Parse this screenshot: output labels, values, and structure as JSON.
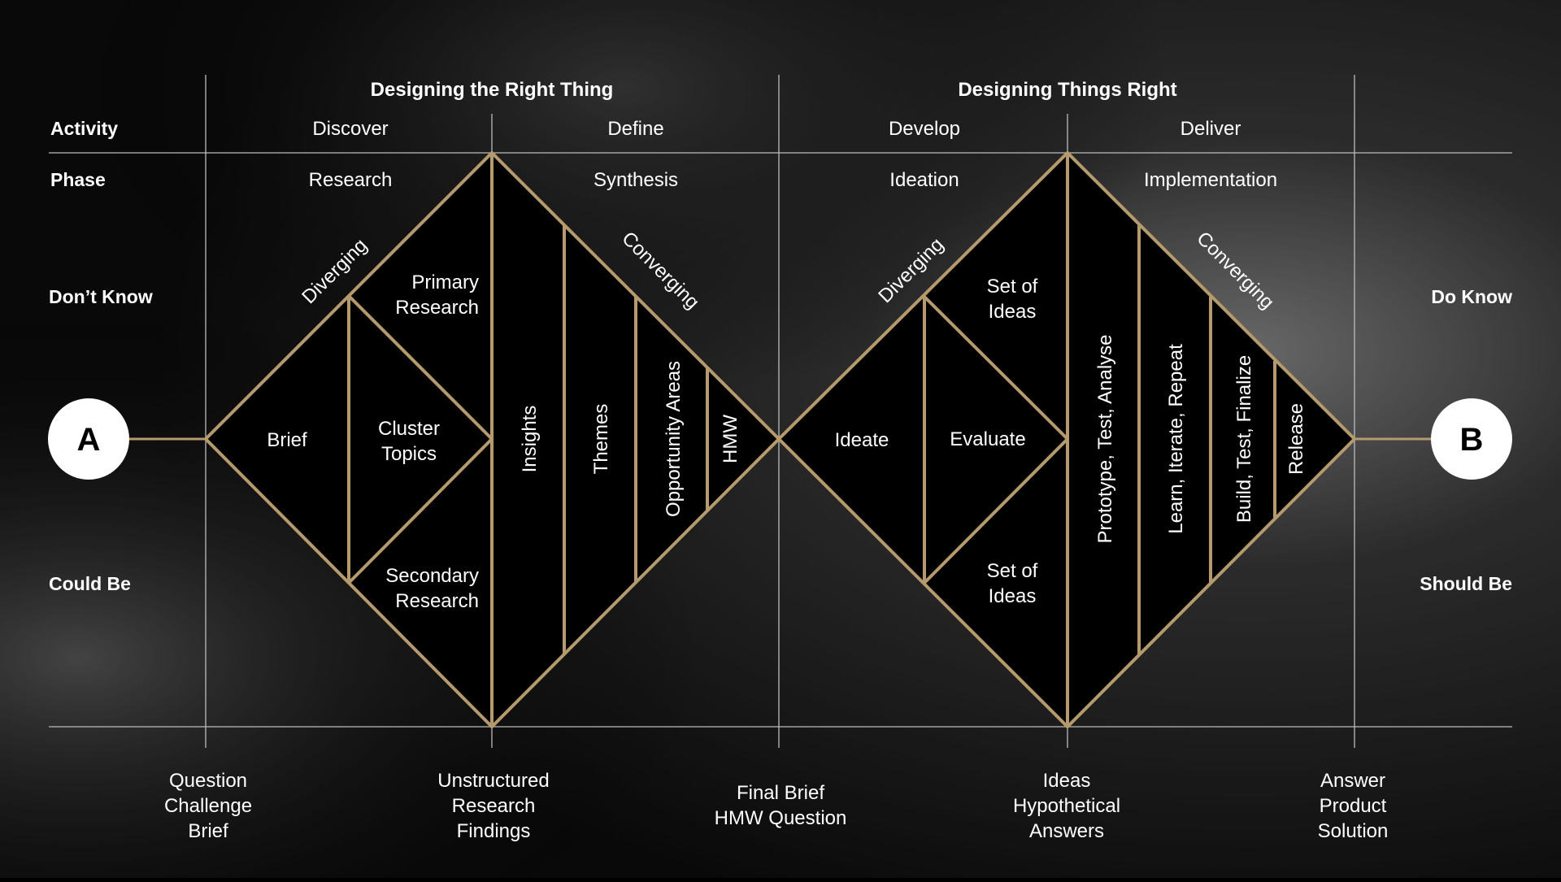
{
  "colors": {
    "gold": "#b49a6c",
    "grid": "#bdbdbd",
    "diamond_fill": "#000000",
    "text": "#ffffff",
    "background": "#0d0d0d"
  },
  "headers": {
    "left": "Designing the Right Thing",
    "right": "Designing Things Right"
  },
  "rows": {
    "activity": "Activity",
    "phase": "Phase"
  },
  "activities": [
    "Discover",
    "Define",
    "Develop",
    "Deliver"
  ],
  "phases": [
    "Research",
    "Synthesis",
    "Ideation",
    "Implementation"
  ],
  "sides": {
    "dont_know": "Don’t Know",
    "could_be": "Could Be",
    "do_know": "Do Know",
    "should_be": "Should Be"
  },
  "endpoints": {
    "start": "A",
    "end": "B"
  },
  "diamond1": {
    "diverging": "Diverging",
    "converging": "Converging",
    "brief": "Brief",
    "cluster": [
      "Cluster",
      "Topics"
    ],
    "primary": [
      "Primary",
      "Research"
    ],
    "secondary": [
      "Secondary",
      "Research"
    ],
    "insights": "Insights",
    "themes": "Themes",
    "opportunity": "Opportunity Areas",
    "hmw": "HMW"
  },
  "diamond2": {
    "diverging": "Diverging",
    "converging": "Converging",
    "ideate": "Ideate",
    "evaluate": "Evaluate",
    "set_top": [
      "Set of",
      "Ideas"
    ],
    "set_bottom": [
      "Set of",
      "Ideas"
    ],
    "prototype": "Prototype, Test, Analyse",
    "learn": "Learn, Iterate, Repeat",
    "build": "Build, Test, Finalize",
    "release": "Release"
  },
  "outputs": {
    "o1": [
      "Question",
      "Challenge",
      "Brief"
    ],
    "o2": [
      "Unstructured",
      "Research",
      "Findings"
    ],
    "o3": [
      "Final Brief",
      "HMW Question"
    ],
    "o4": [
      "Ideas",
      "Hypothetical",
      "Answers"
    ],
    "o5": [
      "Answer",
      "Product",
      "Solution"
    ]
  }
}
